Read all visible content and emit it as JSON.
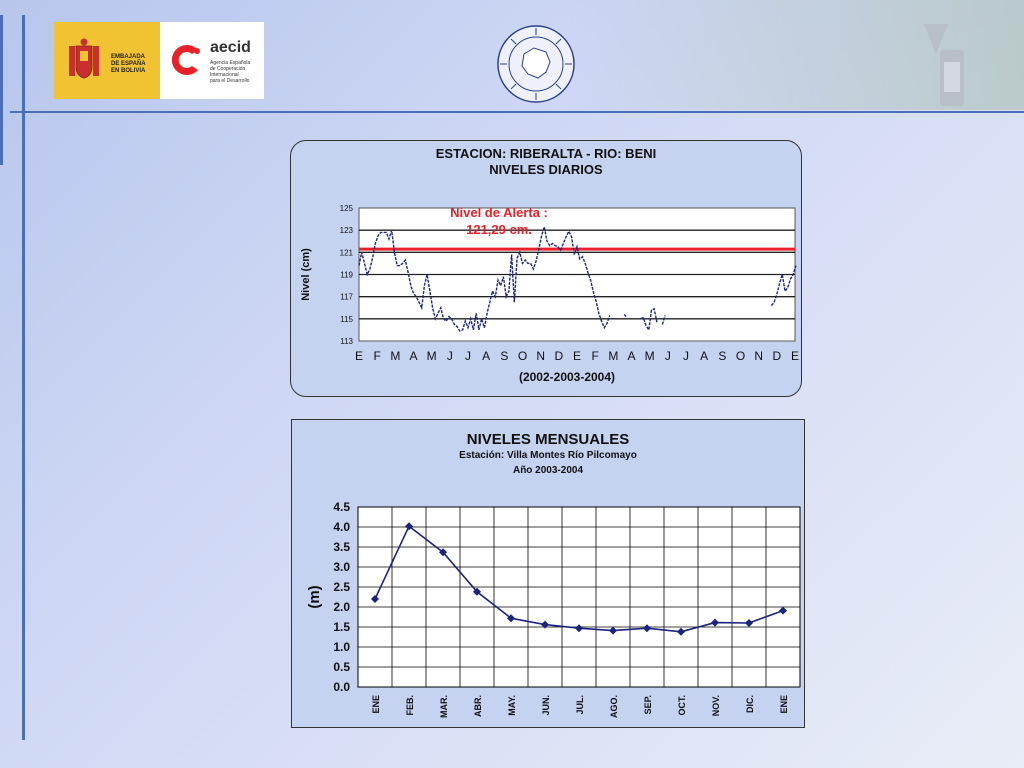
{
  "logos": {
    "embassy_text": [
      "EMBAJADA",
      "DE ESPAÑA",
      "EN BOLIVIA"
    ],
    "aecid_name": "aecid",
    "aecid_sub": [
      "Agencia Española",
      "de Cooperación",
      "Internacional",
      "para el Desarrollo"
    ]
  },
  "chart_data": [
    {
      "type": "line",
      "title": "ESTACION: RIBERALTA - RIO: BENI",
      "subtitle": "NIVELES DIARIOS",
      "ylabel": "Nivel (cm)",
      "xlabel": "(2002-2003-2004)",
      "ylim": [
        113,
        125
      ],
      "yticks": [
        "113",
        "115",
        "117",
        "119",
        "121",
        "123",
        "125"
      ],
      "month_labels": [
        "E",
        "F",
        "M",
        "A",
        "M",
        "J",
        "J",
        "A",
        "S",
        "O",
        "N",
        "D",
        "E",
        "F",
        "M",
        "A",
        "M",
        "J",
        "J",
        "A",
        "S",
        "O",
        "N",
        "D",
        "E"
      ],
      "alert_level": 121.29,
      "alert_label": [
        "Nivel de Alerta :",
        "121,29 cm."
      ],
      "colors": {
        "series": "#1a237e",
        "alert": "#e8202a"
      },
      "series": [
        {
          "values": [
            [
              0.0,
              119.8
            ],
            [
              0.15,
              121.0
            ],
            [
              0.3,
              120.0
            ],
            [
              0.45,
              119.0
            ],
            [
              0.6,
              119.5
            ],
            [
              0.75,
              120.5
            ],
            [
              0.9,
              121.8
            ],
            [
              1.05,
              122.5
            ],
            [
              1.2,
              122.8
            ],
            [
              1.5,
              122.8
            ],
            [
              1.65,
              122.2
            ],
            [
              1.8,
              123.0
            ],
            [
              1.95,
              121.0
            ],
            [
              2.1,
              119.8
            ],
            [
              2.25,
              119.8
            ],
            [
              2.4,
              120.0
            ],
            [
              2.55,
              120.3
            ],
            [
              2.7,
              119.2
            ],
            [
              2.85,
              118.0
            ],
            [
              3.0,
              117.3
            ],
            [
              3.15,
              117.0
            ],
            [
              3.3,
              116.5
            ],
            [
              3.45,
              116.0
            ],
            [
              3.6,
              118.0
            ],
            [
              3.75,
              119.0
            ],
            [
              3.9,
              117.5
            ],
            [
              4.05,
              116.0
            ],
            [
              4.2,
              115.0
            ],
            [
              4.35,
              115.5
            ],
            [
              4.5,
              116.0
            ],
            [
              4.65,
              115.0
            ],
            [
              4.8,
              114.8
            ],
            [
              4.95,
              115.2
            ],
            [
              5.1,
              115.0
            ],
            [
              5.25,
              114.5
            ],
            [
              5.4,
              114.3
            ],
            [
              5.55,
              113.9
            ],
            [
              5.7,
              114.0
            ],
            [
              5.85,
              114.8
            ],
            [
              6.0,
              114.2
            ],
            [
              6.15,
              115.0
            ],
            [
              6.3,
              114.0
            ],
            [
              6.45,
              115.5
            ],
            [
              6.6,
              114.0
            ],
            [
              6.75,
              115.0
            ],
            [
              6.9,
              114.2
            ],
            [
              7.05,
              115.5
            ],
            [
              7.2,
              116.5
            ],
            [
              7.35,
              117.5
            ],
            [
              7.5,
              117.0
            ],
            [
              7.65,
              118.5
            ],
            [
              7.8,
              118.0
            ],
            [
              7.95,
              118.8
            ],
            [
              8.1,
              117.0
            ],
            [
              8.25,
              117.5
            ],
            [
              8.4,
              120.8
            ],
            [
              8.55,
              116.5
            ],
            [
              8.7,
              120.5
            ],
            [
              8.85,
              121.0
            ],
            [
              9.0,
              120.0
            ],
            [
              9.15,
              120.3
            ],
            [
              9.3,
              120.0
            ],
            [
              9.45,
              120.0
            ],
            [
              9.6,
              119.5
            ],
            [
              9.75,
              120.2
            ],
            [
              9.9,
              121.3
            ],
            [
              10.05,
              122.5
            ],
            [
              10.2,
              123.3
            ],
            [
              10.35,
              122.0
            ],
            [
              10.5,
              121.6
            ],
            [
              10.65,
              121.8
            ],
            [
              10.8,
              121.6
            ],
            [
              10.95,
              121.5
            ],
            [
              11.1,
              121.2
            ],
            [
              11.25,
              121.8
            ],
            [
              11.4,
              122.4
            ],
            [
              11.55,
              122.9
            ],
            [
              11.7,
              122.4
            ],
            [
              11.85,
              120.8
            ],
            [
              12.0,
              121.5
            ],
            [
              12.15,
              120.4
            ],
            [
              12.3,
              120.6
            ],
            [
              12.45,
              120.0
            ],
            [
              12.6,
              119.2
            ],
            [
              12.75,
              118.5
            ],
            [
              12.9,
              117.4
            ],
            [
              13.05,
              116.6
            ],
            [
              13.2,
              115.5
            ],
            [
              13.35,
              114.8
            ],
            [
              13.5,
              114.2
            ],
            [
              13.65,
              114.6
            ],
            [
              13.8,
              115.3
            ]
          ]
        },
        {
          "values": [
            [
              14.6,
              115.4
            ],
            [
              14.7,
              115.2
            ]
          ]
        },
        {
          "values": [
            [
              15.5,
              115.0
            ],
            [
              15.65,
              115.1
            ],
            [
              15.8,
              114.4
            ],
            [
              15.95,
              114.0
            ],
            [
              16.1,
              115.8
            ],
            [
              16.25,
              115.9
            ],
            [
              16.4,
              114.7
            ]
          ]
        },
        {
          "values": [
            [
              16.7,
              114.5
            ],
            [
              16.85,
              115.3
            ]
          ]
        },
        {
          "values": [
            [
              22.7,
              116.2
            ],
            [
              22.85,
              116.5
            ],
            [
              23.0,
              117.2
            ],
            [
              23.15,
              118.2
            ],
            [
              23.3,
              119.0
            ],
            [
              23.45,
              117.5
            ],
            [
              23.6,
              117.8
            ],
            [
              23.75,
              118.6
            ],
            [
              23.9,
              119.0
            ],
            [
              24.05,
              119.8
            ]
          ]
        }
      ]
    },
    {
      "type": "line",
      "title": "NIVELES  MENSUALES",
      "subtitle": [
        "Estación: Villa Montes Río Pilcomayo",
        "Año 2003-2004"
      ],
      "ylabel": "(m)",
      "ylim": [
        0,
        4.5
      ],
      "yticks": [
        "0.0",
        "0.5",
        "1.0",
        "1.5",
        "2.0",
        "2.5",
        "3.0",
        "3.5",
        "4.0",
        "4.5"
      ],
      "categories": [
        "ENE",
        "FEB.",
        "MAR.",
        "ABR.",
        "MAY.",
        "JUN.",
        "JUL.",
        "AGO.",
        "SEP.",
        "OCT.",
        "NOV.",
        "DIC.",
        "ENE"
      ],
      "values": [
        2.2,
        4.02,
        3.37,
        2.38,
        1.72,
        1.56,
        1.47,
        1.41,
        1.47,
        1.38,
        1.61,
        1.6,
        1.91
      ],
      "colors": {
        "series": "#1a237e",
        "grid": "#000000"
      }
    }
  ]
}
